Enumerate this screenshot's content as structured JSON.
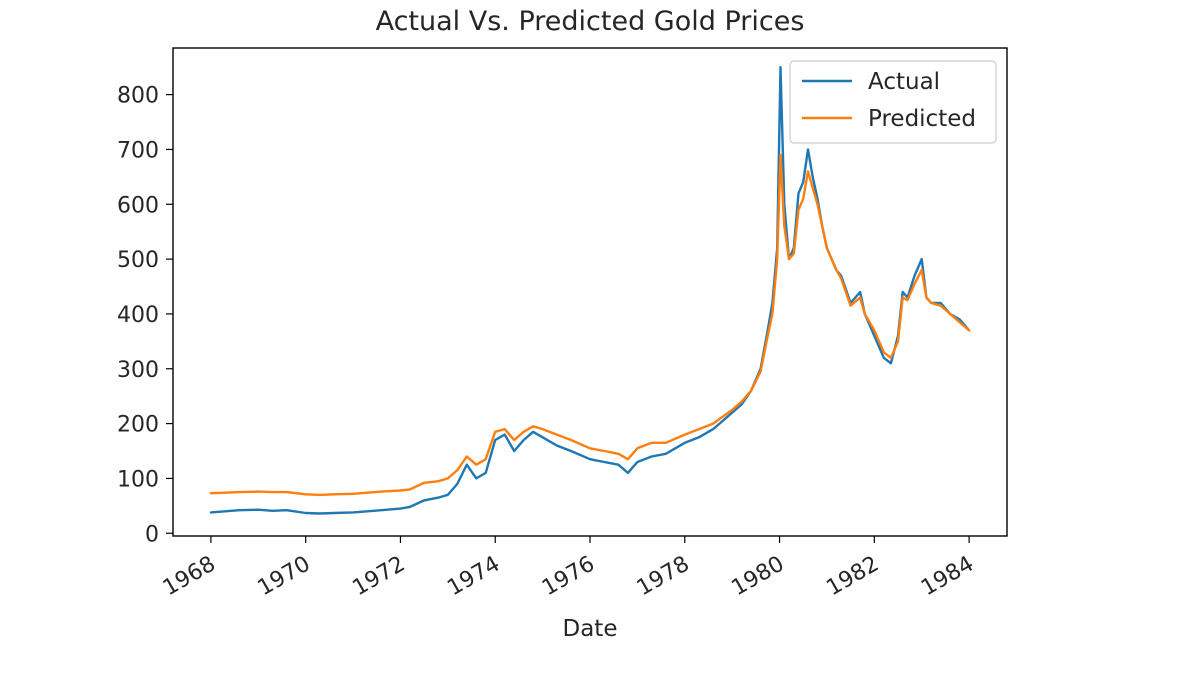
{
  "chart_data": {
    "type": "line",
    "title": "Actual Vs. Predicted Gold Prices",
    "xlabel": "Date",
    "ylabel": "",
    "x_ticks": [
      "1968",
      "1970",
      "1972",
      "1974",
      "1976",
      "1978",
      "1980",
      "1982",
      "1984"
    ],
    "y_ticks": [
      "0",
      "100",
      "200",
      "300",
      "400",
      "500",
      "600",
      "700",
      "800"
    ],
    "xlim": [
      1967.2,
      1984.8
    ],
    "ylim": [
      -5,
      885
    ],
    "grid": false,
    "legend": "top-right",
    "series": [
      {
        "name": "Actual",
        "color": "#1f77b4",
        "x": [
          1968.0,
          1968.3,
          1968.6,
          1969.0,
          1969.3,
          1969.6,
          1970.0,
          1970.3,
          1970.6,
          1971.0,
          1971.3,
          1971.6,
          1972.0,
          1972.2,
          1972.5,
          1972.8,
          1973.0,
          1973.2,
          1973.4,
          1973.6,
          1973.8,
          1974.0,
          1974.2,
          1974.4,
          1974.6,
          1974.8,
          1975.0,
          1975.3,
          1975.6,
          1976.0,
          1976.3,
          1976.6,
          1976.8,
          1977.0,
          1977.3,
          1977.6,
          1978.0,
          1978.3,
          1978.6,
          1979.0,
          1979.2,
          1979.4,
          1979.6,
          1979.75,
          1979.85,
          1979.95,
          1980.02,
          1980.1,
          1980.2,
          1980.3,
          1980.4,
          1980.5,
          1980.6,
          1980.7,
          1980.8,
          1980.9,
          1981.0,
          1981.2,
          1981.3,
          1981.5,
          1981.7,
          1981.8,
          1982.0,
          1982.2,
          1982.35,
          1982.5,
          1982.6,
          1982.7,
          1982.85,
          1983.0,
          1983.1,
          1983.2,
          1983.4,
          1983.6,
          1983.8,
          1984.0
        ],
        "values": [
          38,
          40,
          42,
          43,
          41,
          42,
          37,
          36,
          37,
          38,
          40,
          42,
          45,
          48,
          60,
          65,
          70,
          90,
          125,
          100,
          110,
          170,
          180,
          150,
          170,
          185,
          175,
          160,
          150,
          135,
          130,
          125,
          110,
          130,
          140,
          145,
          165,
          175,
          190,
          220,
          235,
          260,
          300,
          370,
          420,
          520,
          850,
          600,
          500,
          520,
          620,
          640,
          700,
          650,
          610,
          560,
          520,
          480,
          470,
          420,
          440,
          400,
          360,
          320,
          310,
          360,
          440,
          430,
          470,
          500,
          430,
          420,
          420,
          400,
          390,
          370
        ]
      },
      {
        "name": "Predicted",
        "color": "#ff7f0e",
        "x": [
          1968.0,
          1968.3,
          1968.6,
          1969.0,
          1969.3,
          1969.6,
          1970.0,
          1970.3,
          1970.6,
          1971.0,
          1971.3,
          1971.6,
          1972.0,
          1972.2,
          1972.5,
          1972.8,
          1973.0,
          1973.2,
          1973.4,
          1973.6,
          1973.8,
          1974.0,
          1974.2,
          1974.4,
          1974.6,
          1974.8,
          1975.0,
          1975.3,
          1975.6,
          1976.0,
          1976.3,
          1976.6,
          1976.8,
          1977.0,
          1977.3,
          1977.6,
          1978.0,
          1978.3,
          1978.6,
          1979.0,
          1979.2,
          1979.4,
          1979.6,
          1979.75,
          1979.85,
          1979.95,
          1980.02,
          1980.1,
          1980.2,
          1980.3,
          1980.4,
          1980.5,
          1980.6,
          1980.7,
          1980.8,
          1980.9,
          1981.0,
          1981.2,
          1981.3,
          1981.5,
          1981.7,
          1981.8,
          1982.0,
          1982.2,
          1982.35,
          1982.5,
          1982.6,
          1982.7,
          1982.85,
          1983.0,
          1983.1,
          1983.2,
          1983.4,
          1983.6,
          1983.8,
          1984.0
        ],
        "values": [
          73,
          74,
          75,
          76,
          75,
          75,
          71,
          70,
          71,
          72,
          74,
          76,
          78,
          80,
          92,
          95,
          100,
          115,
          140,
          125,
          135,
          185,
          190,
          170,
          185,
          195,
          190,
          180,
          170,
          155,
          150,
          145,
          135,
          155,
          165,
          165,
          180,
          190,
          200,
          225,
          240,
          260,
          295,
          360,
          400,
          500,
          690,
          560,
          500,
          510,
          590,
          610,
          660,
          630,
          600,
          560,
          520,
          480,
          465,
          415,
          430,
          400,
          370,
          330,
          320,
          350,
          430,
          425,
          455,
          480,
          430,
          420,
          415,
          400,
          385,
          370
        ]
      }
    ]
  }
}
